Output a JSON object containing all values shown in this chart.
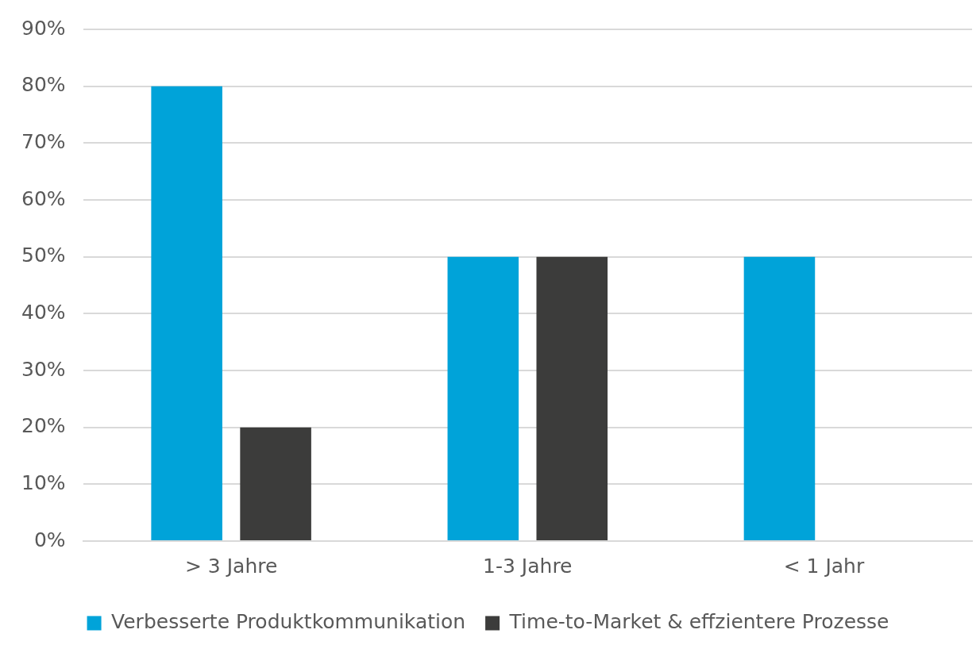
{
  "chart_data": {
    "type": "bar",
    "categories": [
      "> 3 Jahre",
      "1-3 Jahre",
      "< 1 Jahr"
    ],
    "series": [
      {
        "name": "Verbesserte Produktkommunikation",
        "color": "#00a3d9",
        "values": [
          80,
          50,
          50
        ]
      },
      {
        "name": "Time-to-Market & effzientere Prozesse",
        "color": "#3c3c3b",
        "values": [
          20,
          50,
          0
        ]
      }
    ],
    "ylim": [
      0,
      90
    ],
    "yticks": [
      {
        "value": 0,
        "label": "0%"
      },
      {
        "value": 10,
        "label": "10%"
      },
      {
        "value": 20,
        "label": "20%"
      },
      {
        "value": 30,
        "label": "30%"
      },
      {
        "value": 40,
        "label": "40%"
      },
      {
        "value": 50,
        "label": "50%"
      },
      {
        "value": 60,
        "label": "60%"
      },
      {
        "value": 70,
        "label": "70%"
      },
      {
        "value": 80,
        "label": "80%"
      },
      {
        "value": 90,
        "label": "90%"
      }
    ],
    "grid": "y",
    "legend": "bottom"
  }
}
